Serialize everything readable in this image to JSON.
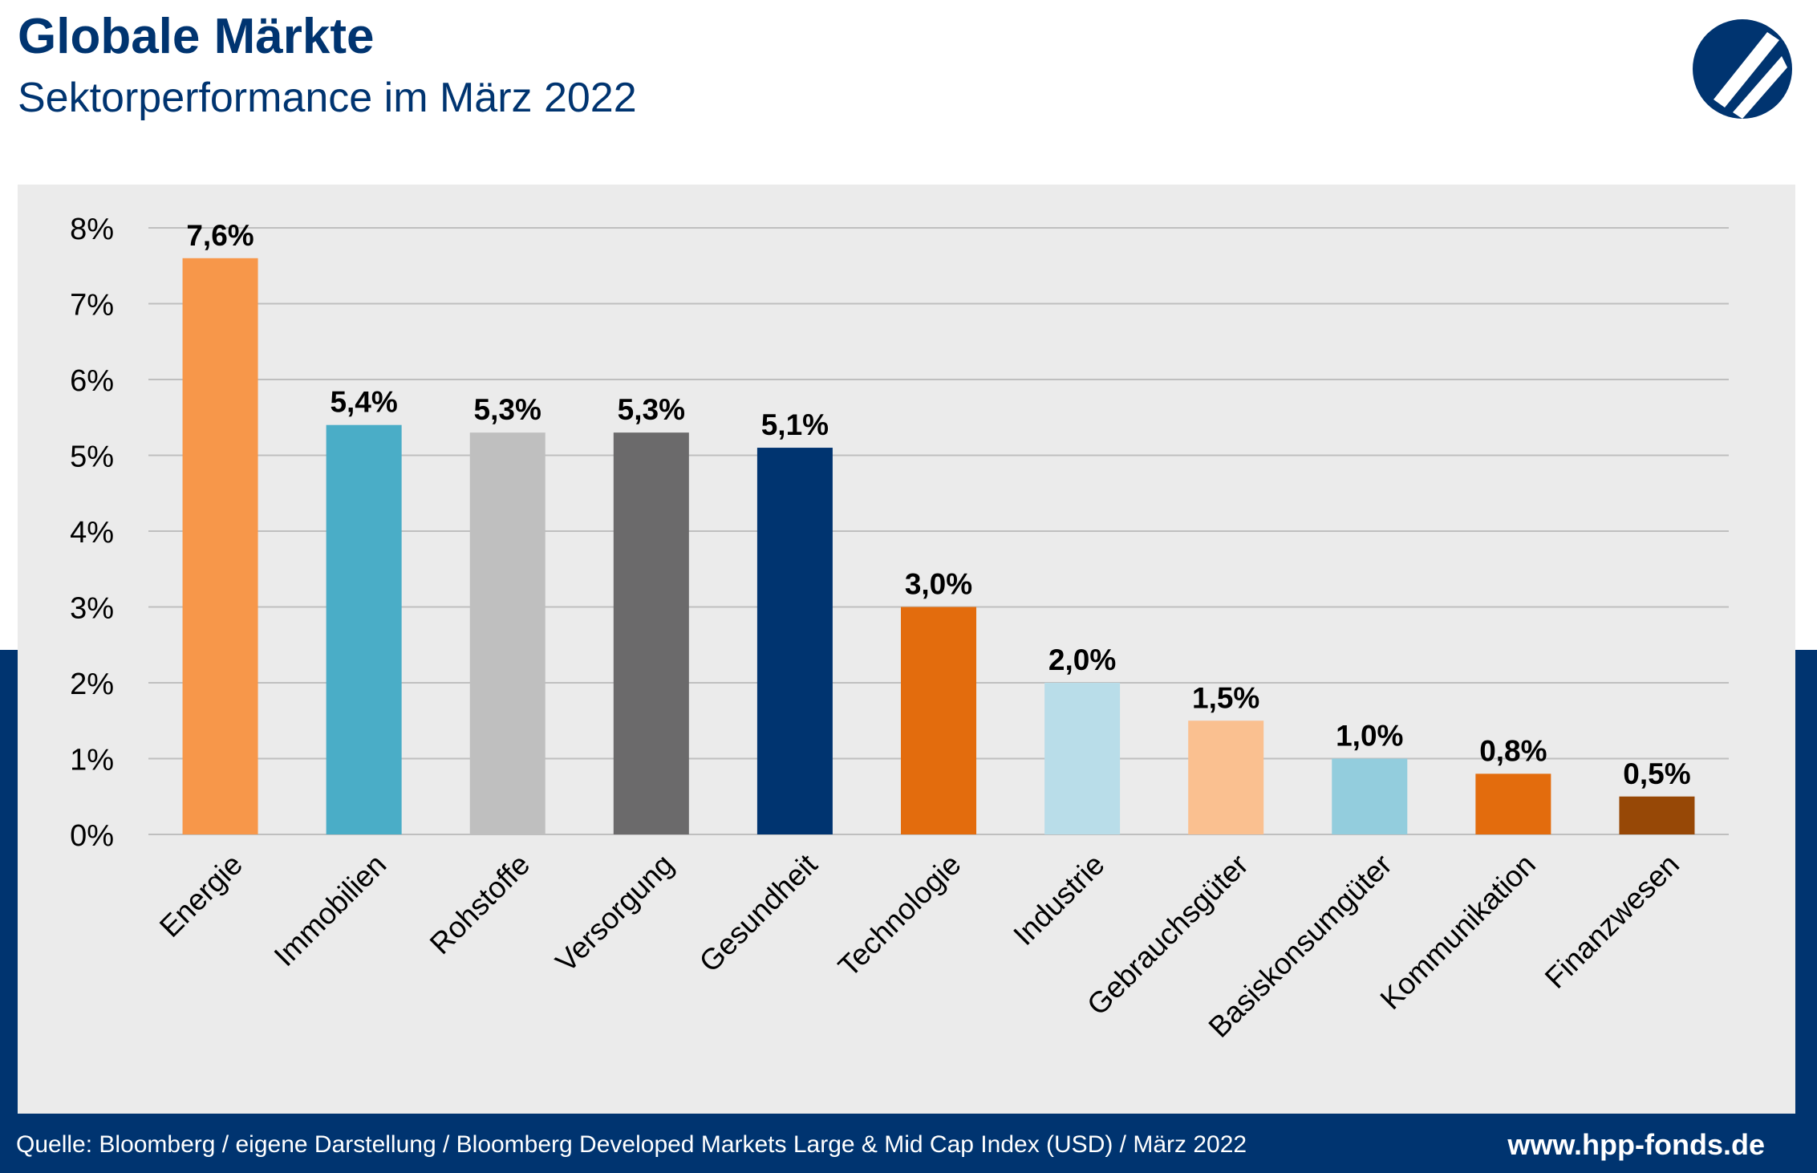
{
  "header": {
    "title": "Globale Märkte",
    "subtitle": "Sektorperformance im März 2022"
  },
  "footer": {
    "source": "Quelle: Bloomberg / eigene Darstellung / Bloomberg Developed Markets Large & Mid Cap Index (USD) / März 2022",
    "website": "www.hpp-fonds.de"
  },
  "colors": {
    "brand": "#003470",
    "panel": "#ebebeb",
    "gridline": "#bfbfbf"
  },
  "chart_data": {
    "type": "bar",
    "title": "",
    "xlabel": "",
    "ylabel": "",
    "ylim": [
      0,
      8
    ],
    "yticks": [
      "0%",
      "1%",
      "2%",
      "3%",
      "4%",
      "5%",
      "6%",
      "7%",
      "8%"
    ],
    "grid": true,
    "legend": "none",
    "categories": [
      "Energie",
      "Immobilien",
      "Rohstoffe",
      "Versorgung",
      "Gesundheit",
      "Technologie",
      "Industrie",
      "Gebrauchsgüter",
      "Basiskonsumgüter",
      "Kommunikation",
      "Finanzwesen"
    ],
    "values": [
      7.6,
      5.4,
      5.3,
      5.3,
      5.1,
      3.0,
      2.0,
      1.5,
      1.0,
      0.8,
      0.5
    ],
    "value_labels": [
      "7,6%",
      "5,4%",
      "5,3%",
      "5,3%",
      "5,1%",
      "3,0%",
      "2,0%",
      "1,5%",
      "1,0%",
      "0,8%",
      "0,5%"
    ],
    "bar_colors": [
      "#f7974a",
      "#4aadc7",
      "#bfbfbf",
      "#6b6a6b",
      "#003470",
      "#e36c0d",
      "#b9dde9",
      "#fac090",
      "#93cddd",
      "#e36c0d",
      "#974806"
    ]
  }
}
